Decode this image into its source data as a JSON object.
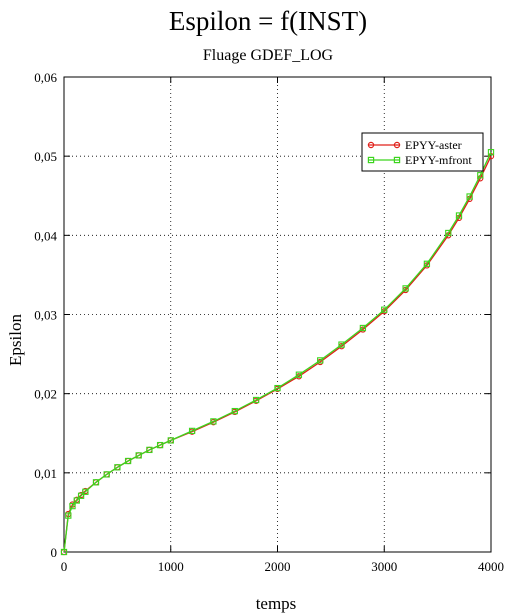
{
  "chart_data": {
    "type": "line",
    "title": "Espilon = f(INST)",
    "subtitle": "Fluage  GDEF_LOG",
    "xlabel": "temps",
    "ylabel": "Epsilon",
    "xlim": [
      0,
      4000
    ],
    "ylim": [
      0,
      0.06
    ],
    "x_ticks": [
      0,
      1000,
      2000,
      3000,
      4000
    ],
    "x_tick_labels": [
      "0",
      "1000",
      "2000",
      "3000",
      "4000"
    ],
    "y_ticks": [
      0,
      0.01,
      0.02,
      0.03,
      0.04,
      0.05,
      0.06
    ],
    "y_tick_labels": [
      "0",
      "0,01",
      "0,02",
      "0,03",
      "0,04",
      "0,05",
      "0,06"
    ],
    "grid": true,
    "legend_position": "top-right",
    "x": [
      0,
      40,
      80,
      120,
      160,
      200,
      300,
      400,
      500,
      600,
      700,
      800,
      900,
      1000,
      1200,
      1400,
      1600,
      1800,
      2000,
      2200,
      2400,
      2600,
      2800,
      3000,
      3200,
      3400,
      3600,
      3700,
      3800,
      3900,
      4000
    ],
    "series": [
      {
        "name": "EPYY-aster",
        "color": "#e0201a",
        "marker": "circle",
        "values": [
          0,
          0.0048,
          0.006,
          0.0066,
          0.0072,
          0.0077,
          0.0088,
          0.0098,
          0.0107,
          0.0115,
          0.0122,
          0.0129,
          0.0135,
          0.0141,
          0.0152,
          0.0164,
          0.0177,
          0.0191,
          0.0206,
          0.0222,
          0.024,
          0.026,
          0.0281,
          0.0304,
          0.0331,
          0.0362,
          0.04,
          0.0422,
          0.0446,
          0.0472,
          0.05
        ]
      },
      {
        "name": "EPYY-mfront",
        "color": "#3cd51e",
        "marker": "square",
        "values": [
          0,
          0.0046,
          0.0058,
          0.0065,
          0.0071,
          0.0076,
          0.0088,
          0.0098,
          0.0107,
          0.0115,
          0.0122,
          0.0129,
          0.0135,
          0.0141,
          0.0153,
          0.0165,
          0.0178,
          0.0192,
          0.0207,
          0.0224,
          0.0242,
          0.0262,
          0.0283,
          0.0306,
          0.0333,
          0.0364,
          0.0403,
          0.0425,
          0.0449,
          0.0476,
          0.0505
        ]
      }
    ]
  }
}
